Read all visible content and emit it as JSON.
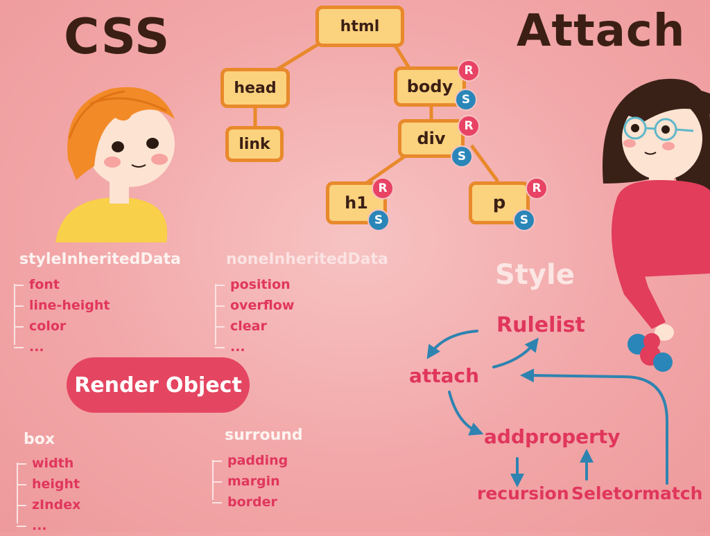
{
  "titles": {
    "css": "CSS",
    "attach": "Attach"
  },
  "tree": {
    "html": "html",
    "head": "head",
    "link": "link",
    "body": "body",
    "div": "div",
    "h1": "h1",
    "p": "p",
    "badge_r": "R",
    "badge_s": "S"
  },
  "style_inherited": {
    "heading": "styleInheritedData",
    "items": [
      "font",
      "line-height",
      "color",
      "..."
    ]
  },
  "none_inherited": {
    "heading": "noneInheritedData",
    "items": [
      "position",
      "overflow",
      "clear",
      "..."
    ]
  },
  "render_object": "Render Object",
  "box": {
    "heading": "box",
    "items": [
      "width",
      "height",
      "zIndex",
      "..."
    ]
  },
  "surround": {
    "heading": "surround",
    "items": [
      "padding",
      "margin",
      "border"
    ]
  },
  "style_flow": {
    "heading": "Style",
    "rulelist": "Rulelist",
    "attach": "attach",
    "addproperty": "addproperty",
    "recursion": "recursion",
    "selector_match": "Seletormatch"
  },
  "colors": {
    "background": "#f2a7a8",
    "accent_red": "#e0365c",
    "node_fill": "#fbd27e",
    "node_border": "#e8892b",
    "arrow_blue": "#2e83b0",
    "title_brown": "#3b1f14"
  }
}
